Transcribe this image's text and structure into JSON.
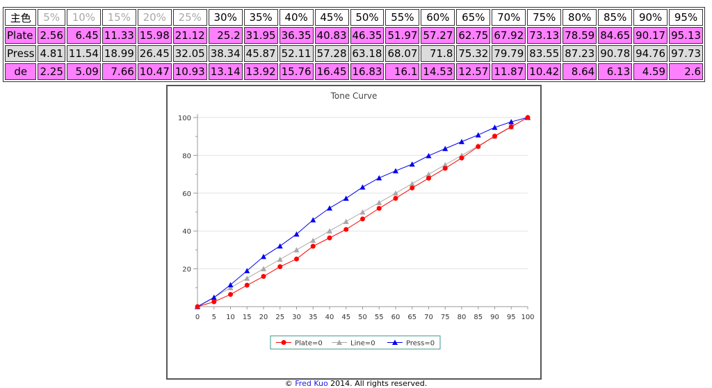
{
  "table": {
    "header": {
      "label": "主色",
      "cells": [
        {
          "text": "5%",
          "dim": true
        },
        {
          "text": "10%",
          "dim": true
        },
        {
          "text": "15%",
          "dim": true
        },
        {
          "text": "20%",
          "dim": true
        },
        {
          "text": "25%",
          "dim": true
        },
        {
          "text": "30%",
          "dim": false
        },
        {
          "text": "35%",
          "dim": false
        },
        {
          "text": "40%",
          "dim": false
        },
        {
          "text": "45%",
          "dim": false
        },
        {
          "text": "50%",
          "dim": false
        },
        {
          "text": "55%",
          "dim": false
        },
        {
          "text": "60%",
          "dim": false
        },
        {
          "text": "65%",
          "dim": false
        },
        {
          "text": "70%",
          "dim": false
        },
        {
          "text": "75%",
          "dim": false
        },
        {
          "text": "80%",
          "dim": false
        },
        {
          "text": "85%",
          "dim": false
        },
        {
          "text": "90%",
          "dim": false
        },
        {
          "text": "95%",
          "dim": false
        }
      ]
    },
    "rows": [
      {
        "label": "Plate",
        "style": "pink",
        "label_align": "left",
        "values": [
          "2.56",
          "6.45",
          "11.33",
          "15.98",
          "21.12",
          "25.2",
          "31.95",
          "36.35",
          "40.83",
          "46.35",
          "51.97",
          "57.27",
          "62.75",
          "67.92",
          "73.13",
          "78.59",
          "84.65",
          "90.17",
          "95.13"
        ]
      },
      {
        "label": "Press",
        "style": "gray",
        "label_align": "left",
        "values": [
          "4.81",
          "11.54",
          "18.99",
          "26.45",
          "32.05",
          "38.34",
          "45.87",
          "52.11",
          "57.28",
          "63.18",
          "68.07",
          "71.8",
          "75.32",
          "79.79",
          "83.55",
          "87.23",
          "90.78",
          "94.76",
          "97.73"
        ]
      },
      {
        "label": "de",
        "style": "pink",
        "label_align": "center",
        "values": [
          "2.25",
          "5.09",
          "7.66",
          "10.47",
          "10.93",
          "13.14",
          "13.92",
          "15.76",
          "16.45",
          "16.83",
          "16.1",
          "14.53",
          "12.57",
          "11.87",
          "10.42",
          "8.64",
          "6.13",
          "4.59",
          "2.6"
        ]
      }
    ]
  },
  "chart_data": {
    "type": "line",
    "title": "Tone Curve",
    "xlabel": "",
    "ylabel": "",
    "x": [
      0,
      5,
      10,
      15,
      20,
      25,
      30,
      35,
      40,
      45,
      50,
      55,
      60,
      65,
      70,
      75,
      80,
      85,
      90,
      95,
      100
    ],
    "xlim": [
      0,
      100
    ],
    "ylim": [
      0,
      100
    ],
    "yticks": [
      20,
      40,
      60,
      80,
      100
    ],
    "grid": true,
    "legend": "bottom-center",
    "series": [
      {
        "name": "Plate=0",
        "color": "#ff0000",
        "marker": "circle",
        "values": [
          0,
          2.56,
          6.45,
          11.33,
          15.98,
          21.12,
          25.2,
          31.95,
          36.35,
          40.83,
          46.35,
          51.97,
          57.27,
          62.75,
          67.92,
          73.13,
          78.59,
          84.65,
          90.17,
          95.13,
          100
        ]
      },
      {
        "name": "Line=0",
        "color": "#a8a8a8",
        "marker": "triangle",
        "values": [
          0,
          5,
          10,
          15,
          20,
          25,
          30,
          35,
          40,
          45,
          50,
          55,
          60,
          65,
          70,
          75,
          80,
          85,
          90,
          95,
          100
        ]
      },
      {
        "name": "Press=0",
        "color": "#0000ee",
        "marker": "triangle",
        "values": [
          0,
          4.81,
          11.54,
          18.99,
          26.45,
          32.05,
          38.34,
          45.87,
          52.11,
          57.28,
          63.18,
          68.07,
          71.8,
          75.32,
          79.79,
          83.55,
          87.23,
          90.78,
          94.76,
          97.73,
          100
        ]
      }
    ]
  },
  "footer": {
    "prefix": "© ",
    "author": "Fred Kuo",
    "suffix": " 2014. All rights reserved."
  }
}
